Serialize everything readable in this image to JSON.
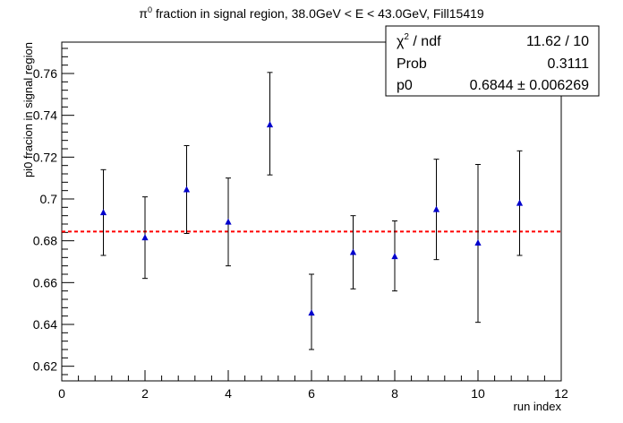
{
  "chart_data": {
    "type": "scatter",
    "title_prefix": "π",
    "title_sup": "0",
    "title_rest": " fraction in signal region, 38.0GeV < E < 43.0GeV, Fill15419",
    "xlabel": "run index",
    "ylabel": "pi0 fracion in signal region",
    "xlim": [
      0,
      12
    ],
    "ylim": [
      0.613,
      0.775
    ],
    "x_ticks": [
      0,
      2,
      4,
      6,
      8,
      10,
      12
    ],
    "y_ticks": [
      0.62,
      0.64,
      0.66,
      0.68,
      0.7,
      0.72,
      0.74,
      0.76
    ],
    "x_tick_labels": [
      "0",
      "2",
      "4",
      "6",
      "8",
      "10",
      "12"
    ],
    "y_tick_labels": [
      "0.62",
      "0.64",
      "0.66",
      "0.68",
      "0.7",
      "0.72",
      "0.74",
      "0.76"
    ],
    "series": [
      {
        "x": [
          1,
          2,
          3,
          4,
          5,
          6,
          7,
          8,
          9,
          10,
          11
        ],
        "y": [
          0.6935,
          0.6815,
          0.7045,
          0.689,
          0.7355,
          0.6455,
          0.6745,
          0.6725,
          0.695,
          0.679,
          0.698
        ],
        "err_low": [
          0.0205,
          0.0195,
          0.021,
          0.021,
          0.024,
          0.0175,
          0.0175,
          0.0165,
          0.024,
          0.038,
          0.025
        ],
        "err_high": [
          0.0205,
          0.0195,
          0.021,
          0.021,
          0.025,
          0.0185,
          0.0175,
          0.017,
          0.024,
          0.0375,
          0.025
        ],
        "color": "#0000cc",
        "marker": "triangle-up"
      }
    ],
    "fit_line": {
      "y": 0.6844,
      "color": "#ff0000",
      "style": "dashed"
    },
    "stats_box": {
      "row1_label_main": "χ",
      "row1_label_sup": "2",
      "row1_label_rest": " / ndf",
      "row1_value": "11.62 / 10",
      "row2_label": "Prob",
      "row2_value": "0.3111",
      "row3_label": "p0",
      "row3_value": "0.6844 ± 0.006269",
      "placement": "top-right"
    }
  }
}
